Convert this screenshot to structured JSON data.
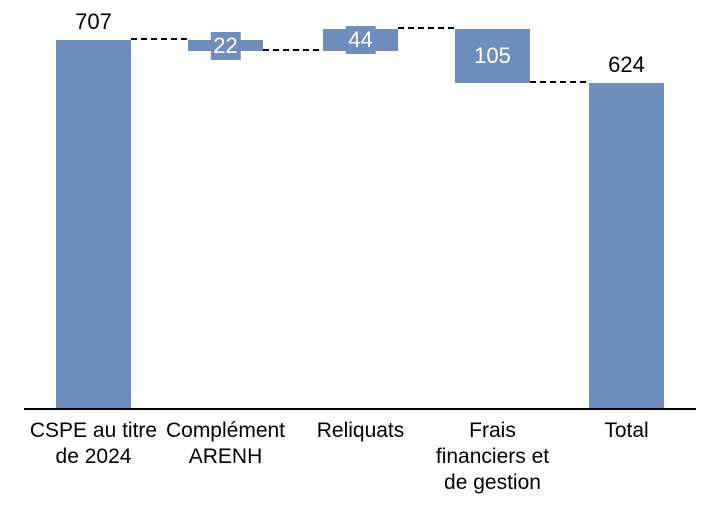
{
  "chart_data": {
    "type": "waterfall",
    "title": "",
    "legend": "none",
    "grid": false,
    "y_axis_visible": false,
    "background_color": "#FFFFFF",
    "bar_color": "#6E8EBE",
    "connector_color": "#000000",
    "connector_style": "dashed",
    "axis_line_color": "#000000",
    "value_label_color_outside": "#000000",
    "value_label_color_inside": "#FFFFFF",
    "categories": [
      "CSPE au titre de 2024",
      "Complément ARENH",
      "Reliquats",
      "Frais financiers et de gestion",
      "Total"
    ],
    "steps": [
      {
        "category": "CSPE au titre de 2024",
        "category_lines": [
          "CSPE au titre",
          "de 2024"
        ],
        "kind": "start",
        "value": 707,
        "cumulative": 707,
        "display_value": "707",
        "label_placement": "above"
      },
      {
        "category": "Complément ARENH",
        "category_lines": [
          "Complément",
          "ARENH"
        ],
        "kind": "delta",
        "value": -22,
        "cumulative": 685,
        "display_value": "22",
        "label_placement": "inside"
      },
      {
        "category": "Reliquats",
        "category_lines": [
          "Reliquats"
        ],
        "kind": "delta",
        "value": 44,
        "cumulative": 729,
        "display_value": "44",
        "label_placement": "inside"
      },
      {
        "category": "Frais financiers et de gestion",
        "category_lines": [
          "Frais",
          "financiers et",
          "de gestion"
        ],
        "kind": "delta",
        "value": -105,
        "cumulative": 624,
        "display_value": "105",
        "label_placement": "inside"
      },
      {
        "category": "Total",
        "category_lines": [
          "Total"
        ],
        "kind": "total",
        "value": 624,
        "cumulative": 624,
        "display_value": "624",
        "label_placement": "above"
      }
    ]
  }
}
